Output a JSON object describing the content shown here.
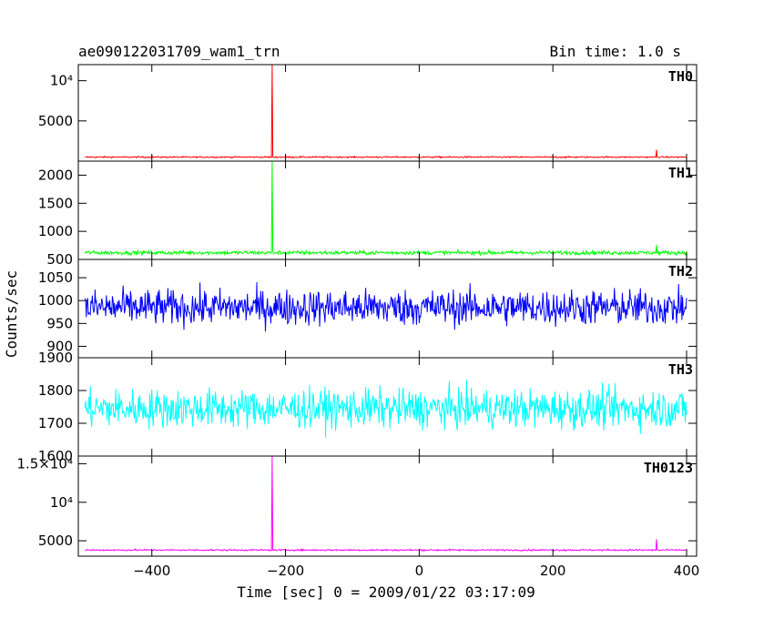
{
  "header": {
    "title": "ae090122031709_wam1_trn",
    "bin_time": "Bin time: 1.0 s"
  },
  "chart_data": {
    "type": "line",
    "title": "ae090122031709_wam1_trn",
    "xlabel": "Time [sec] 0 = 2009/01/22 03:17:09",
    "ylabel": "Counts/sec",
    "x_range": [
      -510,
      415
    ],
    "x_ticks": [
      -400,
      -200,
      0,
      200,
      400
    ],
    "x_tick_labels": [
      "−400",
      "−200",
      "0",
      "200",
      "400"
    ],
    "grid": false,
    "panels": [
      {
        "name": "TH0",
        "color": "#ff0000",
        "ylim": [
          0,
          12000
        ],
        "yticks": [
          5000,
          10000
        ],
        "ytick_labels": [
          "5000",
          "10⁴"
        ],
        "baseline": 500,
        "noise": 60,
        "x_start": -500,
        "x_end": 400,
        "spikes": [
          {
            "x": -220,
            "y": 12000
          },
          {
            "x": 355,
            "y": 1400
          }
        ]
      },
      {
        "name": "TH1",
        "color": "#00ff00",
        "ylim": [
          500,
          2250
        ],
        "yticks": [
          500,
          1000,
          1500,
          2000
        ],
        "ytick_labels": [
          "500",
          "1000",
          "1500",
          "2000"
        ],
        "baseline": 620,
        "noise": 25,
        "x_start": -500,
        "x_end": 400,
        "spikes": [
          {
            "x": -220,
            "y": 2250
          },
          {
            "x": 355,
            "y": 760
          }
        ]
      },
      {
        "name": "TH2",
        "color": "#0000ff",
        "ylim": [
          875,
          1090
        ],
        "yticks": [
          900,
          950,
          1000,
          1050
        ],
        "ytick_labels": [
          "900",
          "950",
          "1000",
          "1050"
        ],
        "baseline": 985,
        "noise": 28,
        "x_start": -500,
        "x_end": 400,
        "spikes": []
      },
      {
        "name": "TH3",
        "color": "#00ffff",
        "ylim": [
          1600,
          1900
        ],
        "yticks": [
          1600,
          1700,
          1800,
          1900
        ],
        "ytick_labels": [
          "1600",
          "1700",
          "1800",
          "1900"
        ],
        "baseline": 1745,
        "noise": 42,
        "x_start": -500,
        "x_end": 400,
        "spikes": []
      },
      {
        "name": "TH0123",
        "color": "#ff00ff",
        "ylim": [
          3000,
          16000
        ],
        "yticks": [
          5000,
          10000,
          15000
        ],
        "ytick_labels": [
          "5000",
          "10⁴",
          "1.5×10⁴"
        ],
        "baseline": 3800,
        "noise": 70,
        "x_start": -500,
        "x_end": 400,
        "spikes": [
          {
            "x": -220,
            "y": 16000
          },
          {
            "x": 355,
            "y": 5200
          }
        ]
      }
    ]
  }
}
